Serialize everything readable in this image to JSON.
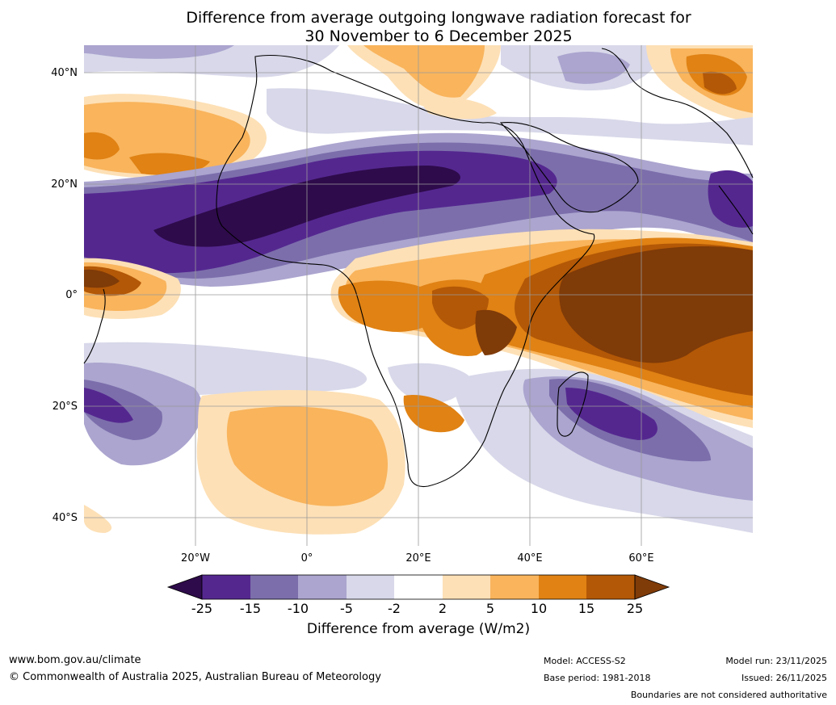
{
  "title": {
    "line1": "Difference from average outgoing longwave radiation forecast for",
    "line2": "30 November to 6 December 2025"
  },
  "map": {
    "lat_labels": [
      "40°N",
      "20°N",
      "0°",
      "20°S",
      "40°S"
    ],
    "lon_labels": [
      "20°W",
      "0°",
      "20°E",
      "40°E",
      "60°E"
    ]
  },
  "legend": {
    "title": "Difference from average (W/m2)",
    "ticks": [
      "-25",
      "-15",
      "-10",
      "-5",
      "-2",
      "2",
      "5",
      "10",
      "15",
      "25"
    ],
    "colors": {
      "lt_-25": "#2e0b4b",
      "-25_-15": "#54278f",
      "-15_-10": "#7c6eab",
      "-10_-5": "#aba5cf",
      "-5_-2": "#d8d8ea",
      "-2_2": "#ffffff",
      "2_5": "#fde0b6",
      "5_10": "#f9b45c",
      "10_15": "#e08214",
      "15_25": "#b35806",
      "gt_25": "#7f3b08"
    }
  },
  "footer": {
    "url": "www.bom.gov.au/climate",
    "copyright": "© Commonwealth of Australia 2025, Australian Bureau of Meteorology",
    "model": "Model: ACCESS-S2",
    "base_period": "Base period: 1981-2018",
    "model_run": "Model run: 23/11/2025",
    "issued": "Issued: 26/11/2025",
    "disclaimer": "Boundaries are not considered authoritative"
  }
}
